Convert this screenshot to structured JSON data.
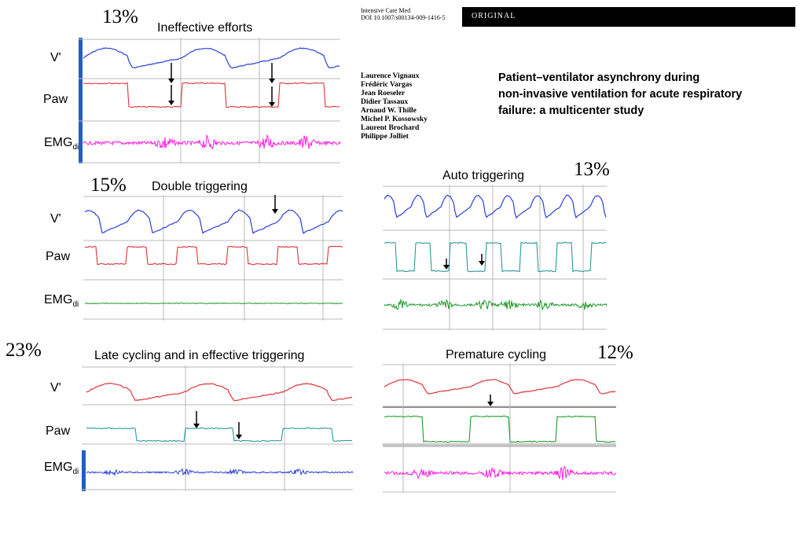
{
  "paper": {
    "journal_line1": "Intensive Care Med",
    "journal_line2": "DOI 10.1007/s00134-009-1416-5",
    "section_label": "ORIGINAL",
    "authors": [
      "Laurence Vignaux",
      "Frédéric Vargas",
      "Jean Roeseler",
      "Didier Tassaux",
      "Arnaud W. Thille",
      "Michel P. Kossowsky",
      "Laurent Brochard",
      "Philippe Jolliet"
    ],
    "title_lines": [
      "Patient–ventilator asynchrony during",
      "non-invasive ventilation for acute respiratory",
      "failure: a multicenter study"
    ]
  },
  "panels": [
    {
      "id": "ineffective",
      "title": "Ineffective efforts",
      "percent": "13%",
      "labels": [
        "V'",
        "Paw",
        "EMG"
      ],
      "label_sub": "di"
    },
    {
      "id": "double",
      "title": "Double triggering",
      "percent": "15%",
      "labels": [
        "V'",
        "Paw",
        "EMG"
      ],
      "label_sub": "di"
    },
    {
      "id": "auto",
      "title": "Auto triggering",
      "percent": "13%"
    },
    {
      "id": "late",
      "title": "Late cycling and in effective triggering",
      "percent": "23%",
      "labels": [
        "V'",
        "Paw",
        "EMG"
      ],
      "label_sub": "di"
    },
    {
      "id": "premature",
      "title": "Premature cycling",
      "percent": "12%"
    }
  ],
  "colors": {
    "blue": "#2a3fd8",
    "red": "#e0333a",
    "magenta": "#ff1ee0",
    "green": "#1f9a2a",
    "teal": "#2a9a9a",
    "grid": "#b8b8b8",
    "bar": "#1f5fc4"
  }
}
